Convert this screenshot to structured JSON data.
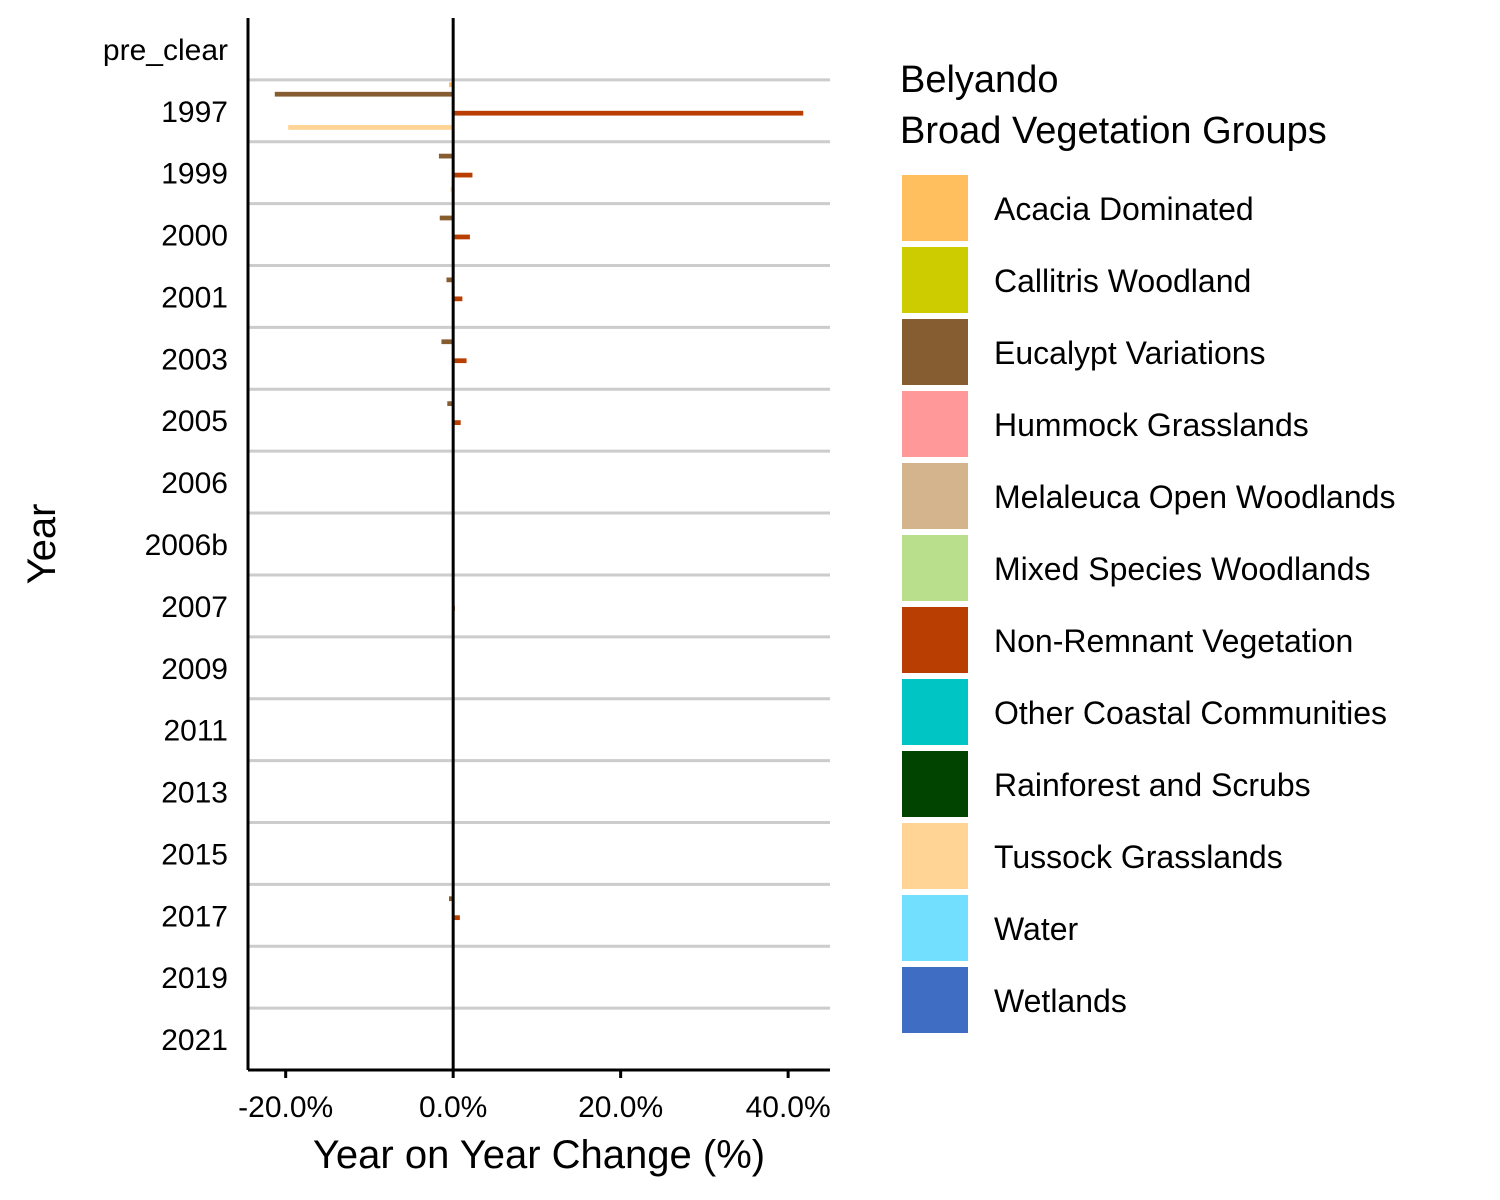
{
  "chart_data": {
    "type": "bar",
    "orientation": "horizontal",
    "xlabel": "Year on Year Change (%)",
    "ylabel": "Year",
    "xlim": [
      -24.5,
      45
    ],
    "xticks": [
      -20,
      0,
      20,
      40
    ],
    "xtick_labels": [
      "-20.0%",
      "0.0%",
      "20.0%",
      "40.0%"
    ],
    "categories": [
      "pre_clear",
      "1997",
      "1999",
      "2000",
      "2001",
      "2003",
      "2005",
      "2006",
      "2006b",
      "2007",
      "2009",
      "2011",
      "2013",
      "2015",
      "2017",
      "2019",
      "2021"
    ],
    "legend_title": [
      "Belyando",
      "Broad Vegetation Groups"
    ],
    "legend_position": "right",
    "series": [
      {
        "name": "Acacia Dominated",
        "color": "#FFBF5F",
        "values": [
          0,
          -0.5,
          0,
          0,
          0,
          0,
          0,
          0,
          0,
          0,
          0,
          0,
          0,
          0,
          0,
          0,
          0
        ]
      },
      {
        "name": "Callitris Woodland",
        "color": "#CCCC00",
        "values": [
          0,
          0,
          0,
          0,
          0,
          0,
          0,
          0,
          0,
          0,
          0,
          0,
          0,
          0,
          0,
          0,
          0
        ]
      },
      {
        "name": "Eucalypt Variations",
        "color": "#855D31",
        "values": [
          0,
          -21.3,
          -1.7,
          -1.6,
          -0.8,
          -1.4,
          -0.7,
          0,
          0,
          0,
          0,
          0,
          0,
          0,
          -0.5,
          0,
          0
        ]
      },
      {
        "name": "Hummock Grasslands",
        "color": "#FF9999",
        "values": [
          0,
          0,
          0,
          0,
          0,
          0,
          0,
          0,
          0,
          0,
          0,
          0,
          0,
          0,
          0,
          0,
          0
        ]
      },
      {
        "name": "Melaleuca Open Woodlands",
        "color": "#D4B48C",
        "values": [
          0,
          0,
          0,
          0,
          0,
          0,
          0,
          0,
          0,
          0,
          0,
          0,
          0,
          0,
          0,
          0,
          0
        ]
      },
      {
        "name": "Mixed Species Woodlands",
        "color": "#B9DF8C",
        "values": [
          0,
          0,
          0,
          0,
          0,
          0,
          0,
          0,
          0,
          0,
          0,
          0,
          0,
          0,
          0,
          0,
          0
        ]
      },
      {
        "name": "Non-Remnant Vegetation",
        "color": "#B83E02",
        "values": [
          0,
          41.8,
          2.3,
          2.0,
          1.1,
          1.6,
          0.9,
          0,
          0,
          0.2,
          0,
          0,
          0,
          0,
          0.8,
          0,
          0
        ]
      },
      {
        "name": "Other Coastal Communities",
        "color": "#00C5C5",
        "values": [
          0,
          0,
          0,
          0,
          0,
          0,
          0,
          0,
          0,
          0,
          0,
          0,
          0,
          0,
          0,
          0,
          0
        ]
      },
      {
        "name": "Rainforest and Scrubs",
        "color": "#004400",
        "values": [
          0,
          0,
          0,
          0,
          0,
          0,
          0,
          0,
          0,
          0,
          0,
          0,
          0,
          0,
          0,
          0,
          0
        ]
      },
      {
        "name": "Tussock Grasslands",
        "color": "#FFD494",
        "values": [
          0,
          -19.7,
          -0.3,
          0,
          0,
          0,
          0,
          0,
          0,
          0,
          0,
          0,
          0,
          0,
          0,
          0,
          0
        ]
      },
      {
        "name": "Water",
        "color": "#73DFFF",
        "values": [
          0,
          0,
          0,
          0,
          0,
          0,
          0,
          0,
          0,
          0,
          0,
          0,
          0,
          0,
          0,
          0,
          0
        ]
      },
      {
        "name": "Wetlands",
        "color": "#3F6DC4",
        "values": [
          0,
          0,
          0,
          0,
          0,
          0,
          0,
          0,
          0,
          0,
          0,
          0,
          0,
          0,
          0,
          0,
          0
        ]
      }
    ]
  }
}
